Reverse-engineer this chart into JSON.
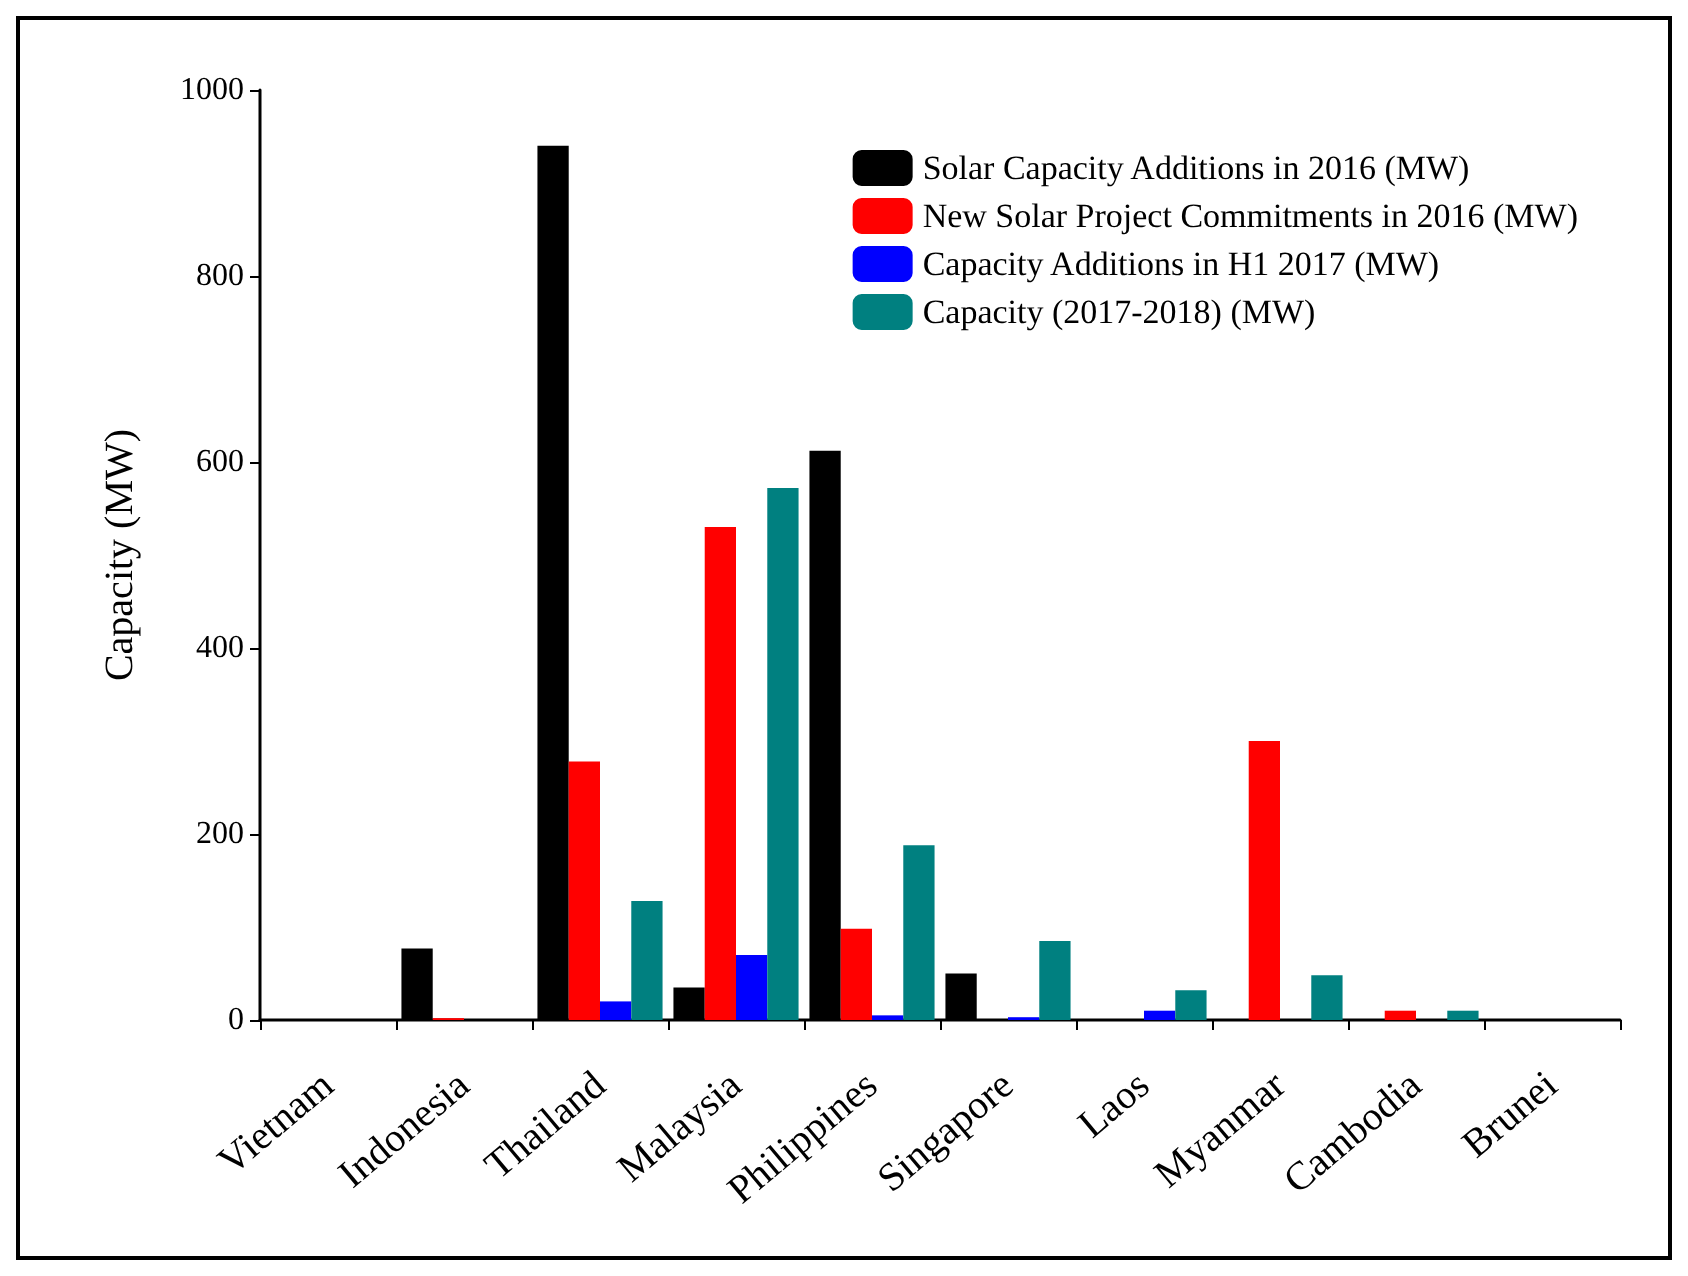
{
  "chart_data": {
    "type": "bar",
    "ylabel": "Capacity (MW)",
    "categories": [
      "Vietnam",
      "Indonesia",
      "Thailand",
      "Malaysia",
      "Philippines",
      "Singapore",
      "Laos",
      "Myanmar",
      "Cambodia",
      "Brunei"
    ],
    "series": [
      {
        "name": "Solar Capacity Additions in 2016 (MW)",
        "color": "#000000",
        "values": [
          0,
          77,
          940,
          35,
          612,
          50,
          0,
          0,
          0,
          0
        ]
      },
      {
        "name": "New Solar Project Commitments in 2016 (MW)",
        "color": "#ff0000",
        "values": [
          0,
          2,
          278,
          530,
          98,
          0,
          0,
          300,
          10,
          0
        ]
      },
      {
        "name": "Capacity Additions in H1 2017 (MW)",
        "color": "#0000ff",
        "values": [
          0,
          0,
          20,
          70,
          5,
          3,
          10,
          0,
          0,
          0
        ]
      },
      {
        "name": "Capacity (2017-2018) (MW)",
        "color": "#008080",
        "values": [
          0,
          0,
          128,
          572,
          188,
          85,
          32,
          48,
          10,
          0
        ]
      }
    ],
    "ylim": [
      0,
      1000
    ],
    "yticks": [
      0,
      200,
      400,
      600,
      800,
      1000
    ],
    "grid": false,
    "legend": "top right"
  }
}
